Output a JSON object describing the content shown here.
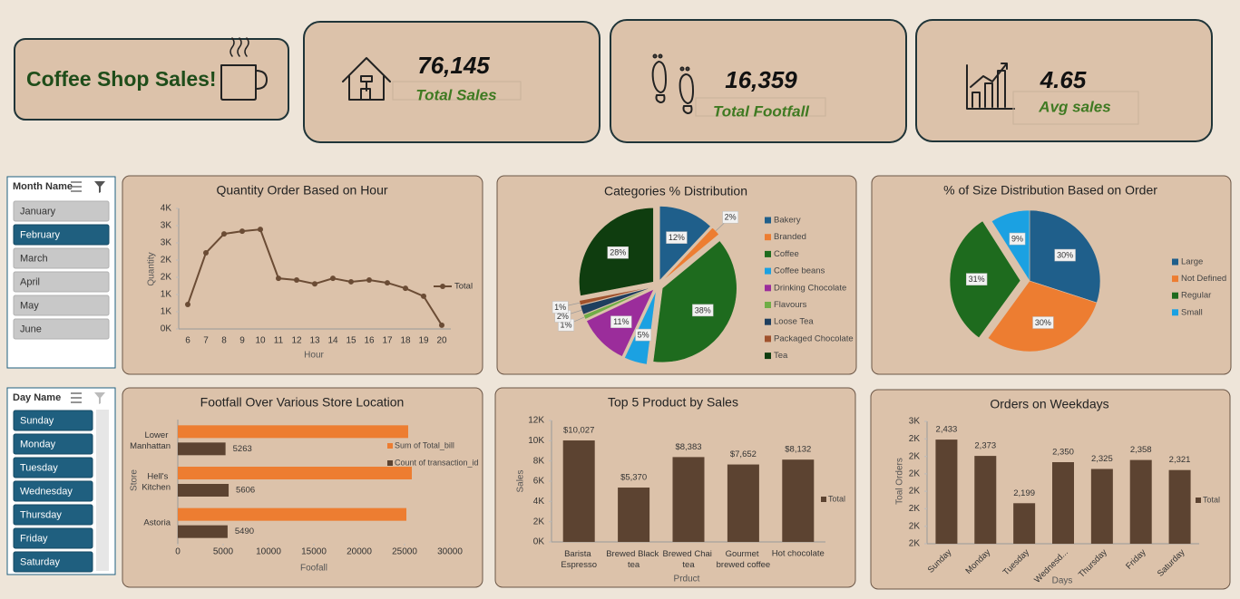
{
  "header": {
    "title": "Coffee Shop Sales!"
  },
  "kpis": [
    {
      "value": "76,145",
      "label": "Total Sales"
    },
    {
      "value": "16,359",
      "label": "Total Footfall"
    },
    {
      "value": "4.65",
      "label": "Avg sales"
    }
  ],
  "slicers": [
    {
      "title": "Month Name",
      "items": [
        "January",
        "February",
        "March",
        "April",
        "May",
        "June"
      ],
      "selected": [
        false,
        true,
        false,
        false,
        false,
        false
      ]
    },
    {
      "title": "Day Name",
      "items": [
        "Sunday",
        "Monday",
        "Tuesday",
        "Wednesday",
        "Thursday",
        "Friday",
        "Saturday"
      ],
      "selected": [
        true,
        true,
        true,
        true,
        true,
        true,
        true
      ]
    }
  ],
  "chart_data": [
    {
      "type": "line",
      "title": "Quantity Order Based on Hour",
      "x_label": "Hour",
      "y_label": "Quantity",
      "categories": [
        "6",
        "7",
        "8",
        "9",
        "10",
        "11",
        "12",
        "13",
        "14",
        "15",
        "16",
        "17",
        "18",
        "19",
        "20"
      ],
      "series": [
        {
          "name": "Total",
          "color": "#6b4c35",
          "values": [
            710,
            2210,
            2760,
            2840,
            2890,
            1470,
            1420,
            1310,
            1470,
            1370,
            1420,
            1340,
            1180,
            950,
            110
          ]
        }
      ],
      "ylim": [
        0,
        3500
      ],
      "yticks": [
        {
          "value": 0,
          "label": "0K"
        },
        {
          "value": 500,
          "label": "1K"
        },
        {
          "value": 1000,
          "label": "1K"
        },
        {
          "value": 1500,
          "label": "2K"
        },
        {
          "value": 2000,
          "label": "2K"
        },
        {
          "value": 2500,
          "label": "3K"
        },
        {
          "value": 3000,
          "label": "3K"
        },
        {
          "value": 3500,
          "label": "4K"
        }
      ]
    },
    {
      "type": "pie",
      "title": "Categories % Distribution",
      "categories": [
        "Bakery",
        "Branded",
        "Coffee",
        "Coffee beans",
        "Drinking Chocolate",
        "Flavours",
        "Loose Tea",
        "Packaged Chocolate",
        "Tea"
      ],
      "values": [
        12,
        2,
        38,
        5,
        11,
        1,
        2,
        1,
        28
      ],
      "value_labels": [
        "12%",
        "2%",
        "38%",
        "5%",
        "11%",
        "1%",
        "2%",
        "1%",
        "28%"
      ],
      "colors": [
        "#1f5f8b",
        "#ed7d31",
        "#1e6b1e",
        "#1ba1e2",
        "#9b2d9b",
        "#70ad47",
        "#1f3f5f",
        "#a0522d",
        "#0f3d0f"
      ]
    },
    {
      "type": "pie",
      "title": "% of Size Distribution Based on Order",
      "categories": [
        "Large",
        "Not Defined",
        "Regular",
        "Small"
      ],
      "values": [
        30,
        30,
        31,
        9
      ],
      "value_labels": [
        "30%",
        "30%",
        "31%",
        "9%"
      ],
      "colors": [
        "#1f5f8b",
        "#ed7d31",
        "#1e6b1e",
        "#1ba1e2"
      ]
    },
    {
      "type": "hbar",
      "title": "Footfall Over Various Store Location",
      "x_label": "Foofall",
      "y_label": "Store",
      "categories": [
        "Lower Manhattan",
        "Hell's Kitchen",
        "Astoria"
      ],
      "series": [
        {
          "name": "Sum of Total_bill",
          "color": "#ed7d31",
          "values": [
            25400,
            25800,
            25200
          ],
          "show_labels": false
        },
        {
          "name": "Count of transaction_id",
          "color": "#5c4331",
          "values": [
            5263,
            5606,
            5490
          ],
          "show_labels": true
        }
      ],
      "xlim": [
        0,
        30000
      ],
      "xticks": [
        0,
        5000,
        10000,
        15000,
        20000,
        25000,
        30000
      ]
    },
    {
      "type": "bar",
      "title": "Top 5 Product by Sales",
      "x_label": "Prduct",
      "y_label": "Sales",
      "categories": [
        "Barista Espresso",
        "Brewed Black tea",
        "Brewed Chai tea",
        "Gourmet brewed coffee",
        "Hot chocolate"
      ],
      "series": [
        {
          "name": "Total",
          "color": "#5c4331",
          "values": [
            10027,
            5370,
            8383,
            7652,
            8132
          ],
          "value_labels": [
            "$10,027",
            "$5,370",
            "$8,383",
            "$7,652",
            "$8,132"
          ]
        }
      ],
      "ylim": [
        0,
        12000
      ],
      "yticks": [
        {
          "value": 0,
          "label": "0K"
        },
        {
          "value": 2000,
          "label": "2K"
        },
        {
          "value": 4000,
          "label": "4K"
        },
        {
          "value": 6000,
          "label": "6K"
        },
        {
          "value": 8000,
          "label": "8K"
        },
        {
          "value": 10000,
          "label": "10K"
        },
        {
          "value": 12000,
          "label": "12K"
        }
      ]
    },
    {
      "type": "bar",
      "title": "Orders on Weekdays",
      "x_label": "Days",
      "y_label": "Toal Orders",
      "categories": [
        "Sunday",
        "Monday",
        "Tuesday",
        "Wednesd...",
        "Thursday",
        "Friday",
        "Saturday"
      ],
      "series": [
        {
          "name": "Total",
          "color": "#5c4331",
          "values": [
            2433,
            2373,
            2199,
            2350,
            2325,
            2358,
            2321
          ],
          "value_labels": [
            "2,433",
            "2,373",
            "2,199",
            "2,350",
            "2,325",
            "2,358",
            "2,321"
          ]
        }
      ],
      "ylim": [
        2050,
        2500
      ],
      "yticks": [
        {
          "value": 2050,
          "label": "2K"
        },
        {
          "value": 2114,
          "label": "2K"
        },
        {
          "value": 2179,
          "label": "2K"
        },
        {
          "value": 2243,
          "label": "2K"
        },
        {
          "value": 2307,
          "label": "2K"
        },
        {
          "value": 2371,
          "label": "2K"
        },
        {
          "value": 2436,
          "label": "2K"
        },
        {
          "value": 2500,
          "label": "3K"
        }
      ]
    }
  ]
}
